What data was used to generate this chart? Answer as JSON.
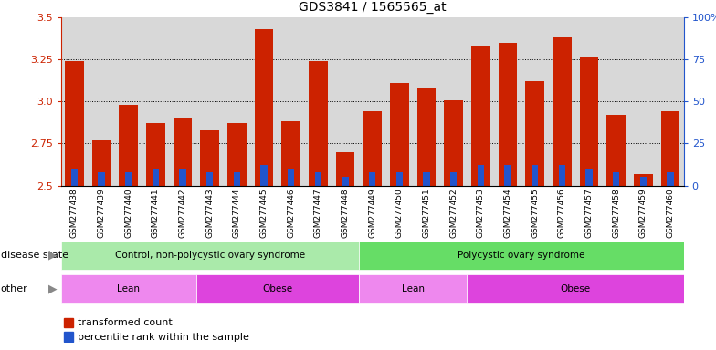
{
  "title": "GDS3841 / 1565565_at",
  "samples": [
    "GSM277438",
    "GSM277439",
    "GSM277440",
    "GSM277441",
    "GSM277442",
    "GSM277443",
    "GSM277444",
    "GSM277445",
    "GSM277446",
    "GSM277447",
    "GSM277448",
    "GSM277449",
    "GSM277450",
    "GSM277451",
    "GSM277452",
    "GSM277453",
    "GSM277454",
    "GSM277455",
    "GSM277456",
    "GSM277457",
    "GSM277458",
    "GSM277459",
    "GSM277460"
  ],
  "red_values": [
    3.24,
    2.77,
    2.98,
    2.87,
    2.9,
    2.83,
    2.87,
    3.43,
    2.88,
    3.24,
    2.7,
    2.94,
    3.11,
    3.08,
    3.01,
    3.33,
    3.35,
    3.12,
    3.38,
    3.26,
    2.92,
    2.57,
    2.94
  ],
  "blue_percentile": [
    10,
    8,
    8,
    10,
    10,
    8,
    8,
    12,
    10,
    8,
    5,
    8,
    8,
    8,
    8,
    12,
    12,
    12,
    12,
    10,
    8,
    5,
    8
  ],
  "ymin": 2.5,
  "ymax": 3.5,
  "yticks_left": [
    2.5,
    2.75,
    3.0,
    3.25,
    3.5
  ],
  "yticks_right": [
    0,
    25,
    50,
    75,
    100
  ],
  "bar_color": "#cc2200",
  "blue_color": "#2255cc",
  "plot_bg_color": "#d8d8d8",
  "label_bg_color": "#c8c8c8",
  "disease_state_groups": [
    {
      "label": "Control, non-polycystic ovary syndrome",
      "start": 0,
      "end": 11,
      "color": "#aaeaaa"
    },
    {
      "label": "Polycystic ovary syndrome",
      "start": 11,
      "end": 23,
      "color": "#66dd66"
    }
  ],
  "other_groups": [
    {
      "label": "Lean",
      "start": 0,
      "end": 5,
      "color": "#ee88ee"
    },
    {
      "label": "Obese",
      "start": 5,
      "end": 11,
      "color": "#dd44dd"
    },
    {
      "label": "Lean",
      "start": 11,
      "end": 15,
      "color": "#ee88ee"
    },
    {
      "label": "Obese",
      "start": 15,
      "end": 23,
      "color": "#dd44dd"
    }
  ],
  "legend_items": [
    {
      "label": "transformed count",
      "color": "#cc2200"
    },
    {
      "label": "percentile rank within the sample",
      "color": "#2255cc"
    }
  ],
  "fig_width": 7.84,
  "fig_height": 3.84,
  "dpi": 100
}
